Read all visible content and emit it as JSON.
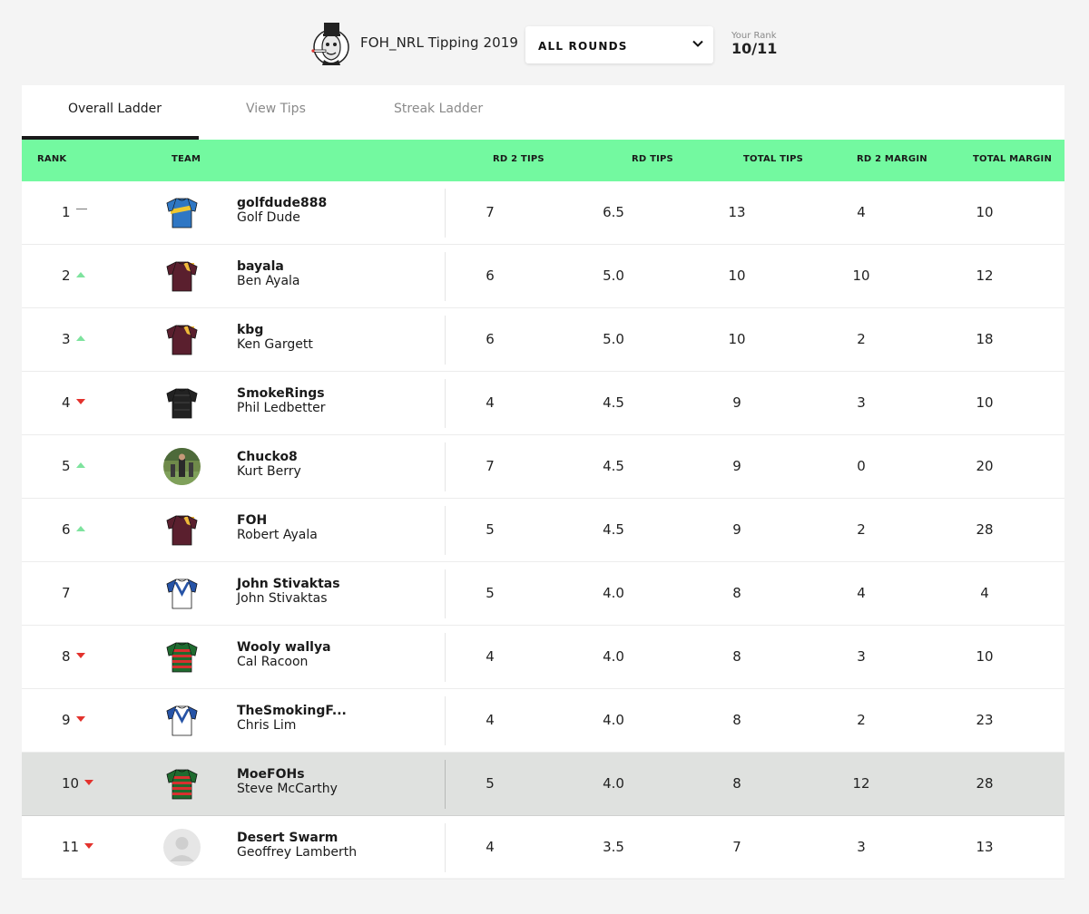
{
  "header": {
    "comp_title": "FOH_NRL Tipping 2019",
    "round_select_value": "ALL ROUNDS",
    "your_rank_label": "Your Rank",
    "your_rank_value": "10/11"
  },
  "tabs": [
    {
      "label": "Overall Ladder",
      "active": true
    },
    {
      "label": "View Tips",
      "active": false
    },
    {
      "label": "Streak Ladder",
      "active": false
    }
  ],
  "columns": {
    "rank": "RANK",
    "team": "TEAM",
    "rd2_tips": "RD 2 TIPS",
    "rd_tips": "RD TIPS",
    "total_tips": "TOTAL TIPS",
    "rd2_margin": "RD 2 MARGIN",
    "total_margin": "TOTAL MARGIN"
  },
  "colors": {
    "header_green": "#73f9a0",
    "trend_up": "#7ee39e",
    "trend_down": "#e3322d",
    "highlight_row": "#dfe1df"
  },
  "rows": [
    {
      "rank": "1",
      "trend": "same",
      "avatar": "jersey-eels",
      "username": "golfdude888",
      "name": "Golf Dude",
      "rd2_tips": "7",
      "rd_tips": "6.5",
      "total_tips": "13",
      "rd2_margin": "4",
      "total_margin": "10"
    },
    {
      "rank": "2",
      "trend": "up",
      "avatar": "jersey-broncos",
      "username": "bayala",
      "name": "Ben Ayala",
      "rd2_tips": "6",
      "rd_tips": "5.0",
      "total_tips": "10",
      "rd2_margin": "10",
      "total_margin": "12"
    },
    {
      "rank": "3",
      "trend": "up",
      "avatar": "jersey-broncos",
      "username": "kbg",
      "name": "Ken Gargett",
      "rd2_tips": "6",
      "rd_tips": "5.0",
      "total_tips": "10",
      "rd2_margin": "2",
      "total_margin": "18"
    },
    {
      "rank": "4",
      "trend": "down",
      "avatar": "jersey-panthers",
      "username": "SmokeRings",
      "name": "Phil Ledbetter",
      "rd2_tips": "4",
      "rd_tips": "4.5",
      "total_tips": "9",
      "rd2_margin": "3",
      "total_margin": "10"
    },
    {
      "rank": "5",
      "trend": "up",
      "avatar": "photo",
      "username": "Chucko8",
      "name": "Kurt Berry",
      "rd2_tips": "7",
      "rd_tips": "4.5",
      "total_tips": "9",
      "rd2_margin": "0",
      "total_margin": "20"
    },
    {
      "rank": "6",
      "trend": "up",
      "avatar": "jersey-broncos",
      "username": "FOH",
      "name": "Robert Ayala",
      "rd2_tips": "5",
      "rd_tips": "4.5",
      "total_tips": "9",
      "rd2_margin": "2",
      "total_margin": "28"
    },
    {
      "rank": "7",
      "trend": "none",
      "avatar": "jersey-bulldogs",
      "username": "John Stivaktas",
      "name": "John Stivaktas",
      "rd2_tips": "5",
      "rd_tips": "4.0",
      "total_tips": "8",
      "rd2_margin": "4",
      "total_margin": "4"
    },
    {
      "rank": "8",
      "trend": "down",
      "avatar": "jersey-rabbitohs",
      "username": "Wooly wallya",
      "name": "Cal Racoon",
      "rd2_tips": "4",
      "rd_tips": "4.0",
      "total_tips": "8",
      "rd2_margin": "3",
      "total_margin": "10"
    },
    {
      "rank": "9",
      "trend": "down",
      "avatar": "jersey-bulldogs",
      "username": "TheSmokingF...",
      "name": "Chris Lim",
      "rd2_tips": "4",
      "rd_tips": "4.0",
      "total_tips": "8",
      "rd2_margin": "2",
      "total_margin": "23"
    },
    {
      "rank": "10",
      "trend": "down",
      "avatar": "jersey-rabbitohs",
      "username": "MoeFOHs",
      "name": "Steve McCarthy",
      "rd2_tips": "5",
      "rd_tips": "4.0",
      "total_tips": "8",
      "rd2_margin": "12",
      "total_margin": "28",
      "highlight": true
    },
    {
      "rank": "11",
      "trend": "down",
      "avatar": "placeholder",
      "username": "Desert Swarm",
      "name": "Geoffrey Lamberth",
      "rd2_tips": "4",
      "rd_tips": "3.5",
      "total_tips": "7",
      "rd2_margin": "3",
      "total_margin": "13"
    }
  ]
}
